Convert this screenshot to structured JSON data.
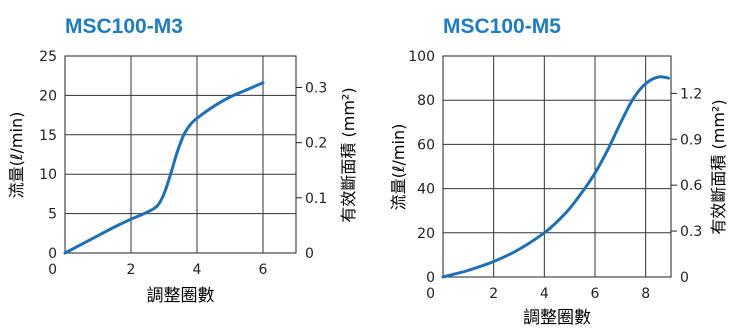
{
  "chart_data": [
    {
      "type": "line",
      "title": "MSC100-M3",
      "xlabel": "調整圈數",
      "ylabel": "流量(ℓ/min)",
      "y2label": "有效斷面積 (mm²)",
      "xlim": [
        0,
        7
      ],
      "ylim": [
        0,
        25
      ],
      "x_ticks": [
        2,
        4,
        6
      ],
      "x_tick_labels": [
        "2",
        "4",
        "6"
      ],
      "y_ticks": [
        0,
        5,
        10,
        15,
        20,
        25
      ],
      "y_tick_labels": [
        "0",
        "5",
        "10",
        "15",
        "20",
        "25"
      ],
      "y2lim": [
        0,
        0.3571
      ],
      "y2_ticks": [
        0,
        0.1,
        0.2,
        0.3
      ],
      "y2_tick_labels": [
        "0",
        "0.1",
        "0.2",
        "0.3"
      ],
      "grid": true,
      "colors": {
        "line": "#1f6fb4",
        "title": "#1f7dbf",
        "axis": "#222222",
        "grid": "#333333"
      },
      "series": [
        {
          "x": [
            0,
            0.5,
            1,
            1.5,
            2,
            2.5,
            2.8,
            3.0,
            3.2,
            3.4,
            3.6,
            3.8,
            4.0,
            4.5,
            5.0,
            5.5,
            6.0
          ],
          "y": [
            0,
            1.1,
            2.2,
            3.3,
            4.3,
            5.2,
            6.0,
            7.5,
            10.0,
            12.8,
            15.0,
            16.3,
            17.1,
            18.6,
            19.8,
            20.7,
            21.6
          ]
        }
      ]
    },
    {
      "type": "line",
      "title": "MSC100-M5",
      "xlabel": "調整圈數",
      "ylabel": "流量(ℓ/min)",
      "y2label": "有效斷面積 (mm²)",
      "xlim": [
        0,
        9
      ],
      "ylim": [
        0,
        100
      ],
      "x_ticks": [
        2,
        4,
        6,
        8
      ],
      "x_tick_labels": [
        "2",
        "4",
        "6",
        "8"
      ],
      "y_ticks": [
        0,
        20,
        40,
        60,
        80,
        100
      ],
      "y_tick_labels": [
        "0",
        "20",
        "40",
        "60",
        "80",
        "100"
      ],
      "y2lim": [
        0,
        1.444
      ],
      "y2_ticks": [
        0,
        0.3,
        0.6,
        0.9,
        1.2
      ],
      "y2_tick_labels": [
        "0",
        "0.3",
        "0.6",
        "0.9",
        "1.2"
      ],
      "grid": true,
      "colors": {
        "line": "#1f6fb4",
        "title": "#1f7dbf",
        "axis": "#222222",
        "grid": "#333333"
      },
      "series": [
        {
          "x": [
            0,
            0.5,
            1,
            2,
            3,
            4,
            4.5,
            5,
            5.5,
            6,
            6.5,
            7,
            7.5,
            8,
            8.5,
            8.9
          ],
          "y": [
            0,
            1.5,
            3.0,
            7.0,
            12.5,
            20.0,
            25.0,
            31.0,
            38.5,
            47.0,
            57.5,
            69.5,
            80.5,
            87.5,
            90.5,
            90.0
          ]
        }
      ]
    }
  ]
}
